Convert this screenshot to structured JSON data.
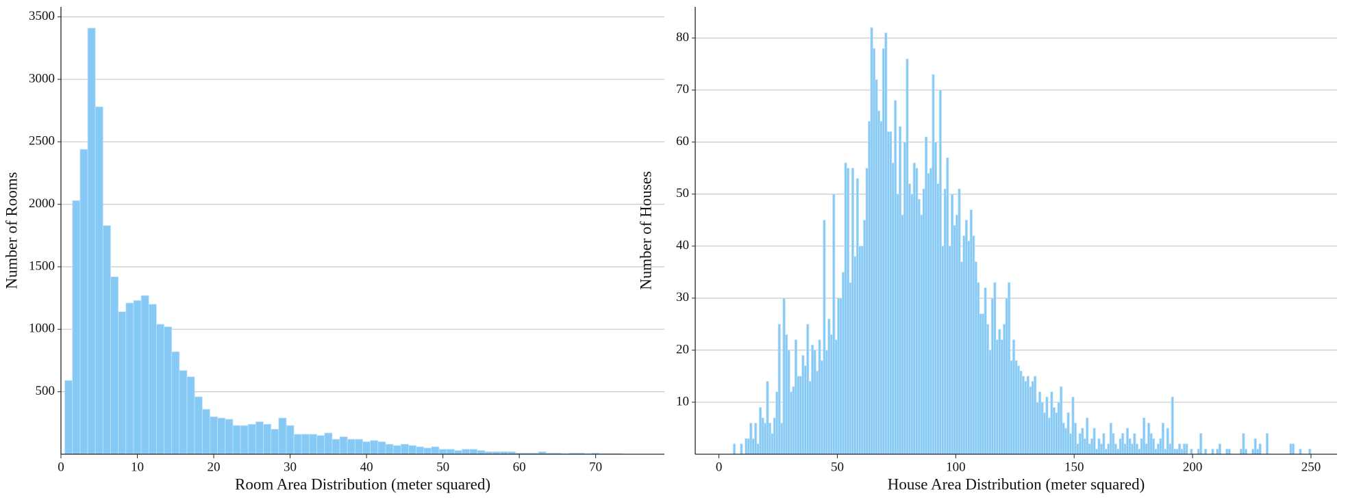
{
  "chart_data": [
    {
      "type": "histogram",
      "xlabel": "Room Area Distribution (meter squared)",
      "ylabel": "Number of Rooms",
      "color": "#86c9f4",
      "grid": true,
      "xlim": [
        0,
        79
      ],
      "ylim": [
        0,
        3580
      ],
      "xticks": [
        0,
        10,
        20,
        30,
        40,
        50,
        60,
        70
      ],
      "yticks": [
        500,
        1000,
        1500,
        2000,
        2500,
        3000,
        3500
      ],
      "bins": [
        0.5,
        1.5,
        2.5,
        3.5,
        4.5,
        5.5,
        6.5,
        7.5,
        8.5,
        9.5,
        10.5,
        11.5,
        12.5,
        13.5,
        14.5,
        15.5,
        16.5,
        17.5,
        18.5,
        19.5,
        20.5,
        21.5,
        22.5,
        23.5,
        24.5,
        25.5,
        26.5,
        27.5,
        28.5,
        29.5,
        30.5,
        31.5,
        32.5,
        33.5,
        34.5,
        35.5,
        36.5,
        37.5,
        38.5,
        39.5,
        40.5,
        41.5,
        42.5,
        43.5,
        44.5,
        45.5,
        46.5,
        47.5,
        48.5,
        49.5,
        50.5,
        51.5,
        52.5,
        53.5,
        54.5,
        55.5,
        56.5,
        57.5,
        58.5,
        59.5,
        60.5,
        61.5,
        62.5,
        63.5,
        64.5,
        65.5,
        66.5,
        67.5,
        68.5,
        69.5,
        70.5,
        71.5,
        72.5,
        73.5
      ],
      "values": [
        590,
        2030,
        2440,
        3410,
        2780,
        1830,
        1420,
        1140,
        1210,
        1230,
        1270,
        1200,
        1040,
        1020,
        820,
        670,
        620,
        460,
        360,
        300,
        290,
        280,
        230,
        230,
        240,
        260,
        240,
        200,
        290,
        230,
        160,
        160,
        160,
        150,
        170,
        120,
        140,
        120,
        120,
        100,
        110,
        100,
        80,
        70,
        80,
        70,
        60,
        50,
        60,
        40,
        40,
        30,
        40,
        40,
        30,
        20,
        20,
        20,
        20,
        10,
        10,
        10,
        20,
        10,
        10,
        5,
        10,
        10,
        5,
        10,
        5,
        5,
        5
      ]
    },
    {
      "type": "histogram",
      "xlabel": "House Area Distribution (meter squared)",
      "ylabel": "Number of Houses",
      "color": "#86c9f4",
      "grid": true,
      "xlim": [
        -10,
        261
      ],
      "ylim": [
        0,
        86
      ],
      "xticks": [
        0,
        50,
        100,
        150,
        200,
        250
      ],
      "yticks": [
        10,
        20,
        30,
        40,
        50,
        60,
        70,
        80
      ],
      "bins": [
        5,
        6,
        7,
        8,
        9,
        10,
        11,
        12,
        13,
        14,
        15,
        16,
        17,
        18,
        19,
        20,
        21,
        22,
        23,
        24,
        25,
        26,
        27,
        28,
        29,
        30,
        31,
        32,
        33,
        34,
        35,
        36,
        37,
        38,
        39,
        40,
        41,
        42,
        43,
        44,
        45,
        46,
        47,
        48,
        49,
        50,
        51,
        52,
        53,
        54,
        55,
        56,
        57,
        58,
        59,
        60,
        61,
        62,
        63,
        64,
        65,
        66,
        67,
        68,
        69,
        70,
        71,
        72,
        73,
        74,
        75,
        76,
        77,
        78,
        79,
        80,
        81,
        82,
        83,
        84,
        85,
        86,
        87,
        88,
        89,
        90,
        91,
        92,
        93,
        94,
        95,
        96,
        97,
        98,
        99,
        100,
        101,
        102,
        103,
        104,
        105,
        106,
        107,
        108,
        109,
        110,
        111,
        112,
        113,
        114,
        115,
        116,
        117,
        118,
        119,
        120,
        121,
        122,
        123,
        124,
        125,
        126,
        127,
        128,
        129,
        130,
        131,
        132,
        133,
        134,
        135,
        136,
        137,
        138,
        139,
        140,
        141,
        142,
        143,
        144,
        145,
        146,
        147,
        148,
        149,
        150,
        151,
        152,
        153,
        154,
        155,
        156,
        157,
        158,
        159,
        160,
        161,
        162,
        163,
        164,
        165,
        166,
        167,
        168,
        169,
        170,
        171,
        172,
        173,
        174,
        175,
        176,
        177,
        178,
        179,
        180,
        181,
        182,
        183,
        184,
        185,
        186,
        187,
        188,
        189,
        190,
        191,
        192,
        193,
        194,
        195,
        196,
        197,
        198,
        199,
        200,
        201,
        202,
        203,
        204,
        205,
        206,
        207,
        208,
        209,
        210,
        211,
        212,
        213,
        214,
        215,
        216,
        217,
        218,
        219,
        220,
        221,
        222,
        223,
        224,
        225,
        226,
        227,
        228,
        229,
        230,
        231,
        232,
        233,
        234,
        235,
        236,
        237,
        238,
        239,
        240,
        241,
        242,
        243,
        244,
        245,
        246,
        247,
        248,
        249,
        250
      ],
      "values": [
        0,
        2,
        0,
        0,
        2,
        0,
        3,
        3,
        6,
        3,
        6,
        2,
        9,
        7,
        6,
        14,
        6,
        4,
        7,
        12,
        25,
        6,
        30,
        23,
        20,
        12,
        13,
        22,
        15,
        15,
        19,
        17,
        25,
        14,
        21,
        20,
        16,
        22,
        18,
        45,
        20,
        26,
        23,
        50,
        22,
        30,
        30,
        35,
        56,
        55,
        33,
        55,
        38,
        53,
        40,
        40,
        45,
        55,
        64,
        82,
        78,
        72,
        66,
        64,
        78,
        81,
        62,
        62,
        56,
        68,
        50,
        63,
        46,
        60,
        76,
        52,
        50,
        56,
        55,
        49,
        46,
        51,
        61,
        54,
        55,
        73,
        60,
        52,
        70,
        40,
        51,
        57,
        40,
        50,
        44,
        46,
        51,
        37,
        42,
        45,
        41,
        47,
        42,
        37,
        33,
        27,
        27,
        32,
        25,
        20,
        30,
        33,
        22,
        24,
        22,
        25,
        30,
        33,
        18,
        22,
        18,
        17,
        16,
        15,
        14,
        15,
        13,
        14,
        15,
        10,
        12,
        10,
        8,
        11,
        7,
        12,
        9,
        8,
        10,
        13,
        6,
        5,
        8,
        4,
        11,
        6,
        2,
        4,
        5,
        3,
        7,
        2,
        3,
        5,
        1,
        3,
        2,
        4,
        1,
        2,
        6,
        4,
        2,
        1,
        3,
        4,
        2,
        5,
        3,
        2,
        4,
        2,
        1,
        3,
        7,
        2,
        6,
        4,
        3,
        1,
        2,
        3,
        6,
        1,
        5,
        2,
        11,
        1,
        1,
        2,
        1,
        2,
        2,
        0,
        1,
        0,
        0,
        1,
        4,
        0,
        1,
        0,
        0,
        1,
        0,
        1,
        2,
        0,
        0,
        1,
        1,
        0,
        0,
        0,
        0,
        1,
        4,
        1,
        0,
        0,
        1,
        3,
        1,
        2,
        0,
        0,
        4,
        0,
        0,
        0,
        0,
        0,
        0,
        0,
        0,
        0,
        2,
        2,
        0,
        0,
        1,
        0,
        0,
        0,
        1
      ]
    }
  ]
}
